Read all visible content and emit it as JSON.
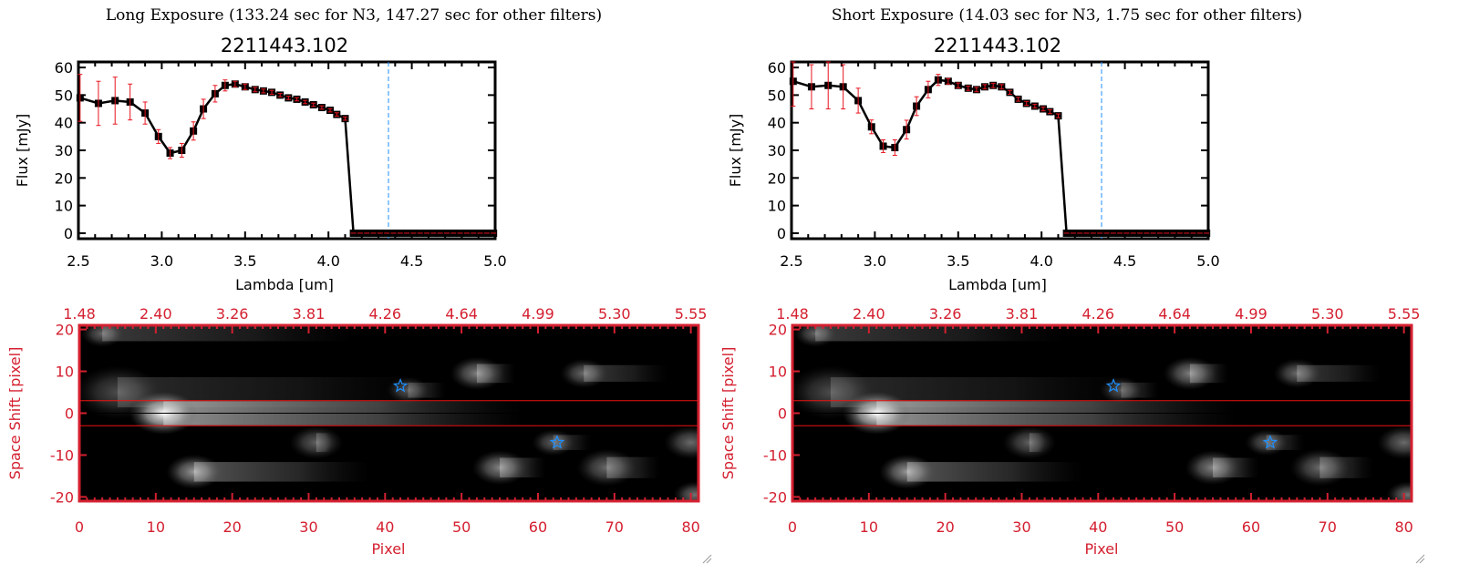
{
  "colors": {
    "line": "#000000",
    "error": "#e8141e",
    "marker": "#000000",
    "cutoff": "#1e90ff",
    "image_axis": "#d42030",
    "aperture": "#ee1111",
    "star": "#1e90ff"
  },
  "chart_data": [
    {
      "type": "line",
      "title": "Long Exposure (133.24 sec for N3, 147.27 sec for other filters)",
      "subtitle": "2211443.102",
      "xlabel": "Lambda [um]",
      "ylabel": "Flux [mJy]",
      "xlim": [
        2.5,
        5.0
      ],
      "ylim": [
        -2,
        62
      ],
      "xticks": [
        "2.5",
        "3.0",
        "3.5",
        "4.0",
        "4.5",
        "5.0"
      ],
      "yticks": [
        "0",
        "10",
        "20",
        "30",
        "40",
        "50",
        "60"
      ],
      "cutoff_lambda": 4.36,
      "x": [
        2.51,
        2.62,
        2.72,
        2.81,
        2.9,
        2.98,
        3.05,
        3.12,
        3.19,
        3.25,
        3.32,
        3.38,
        3.44,
        3.5,
        3.56,
        3.61,
        3.66,
        3.71,
        3.76,
        3.81,
        3.86,
        3.91,
        3.96,
        4.01,
        4.05,
        4.1,
        4.15,
        4.19,
        4.23,
        4.27,
        4.31,
        4.35,
        4.39,
        4.43,
        4.47,
        4.51,
        4.55,
        4.59,
        4.63,
        4.67,
        4.71,
        4.75,
        4.79,
        4.83,
        4.87,
        4.91,
        4.95,
        4.99
      ],
      "y": [
        49,
        47,
        48,
        47.5,
        43.5,
        35,
        29,
        30,
        37,
        45,
        50.5,
        53.5,
        54,
        53,
        52,
        51.5,
        51,
        50,
        49,
        48.5,
        47.5,
        46.5,
        45.5,
        44.5,
        43,
        41.5,
        0,
        0,
        0,
        0,
        0,
        0,
        0,
        0,
        0,
        0,
        0,
        0,
        0,
        0,
        0,
        0,
        0,
        0,
        0,
        0,
        0,
        0
      ],
      "yerr": [
        8.5,
        8,
        8.5,
        6.5,
        4,
        2.5,
        2,
        2.5,
        3.3,
        3.5,
        3,
        2,
        1,
        1,
        0.8,
        0.7,
        0.7,
        0.6,
        0.6,
        0.6,
        0.6,
        0.6,
        0.6,
        0.6,
        0.6,
        0.6,
        0,
        0,
        0,
        0,
        0,
        0,
        0,
        0,
        0,
        0,
        0,
        0,
        0,
        0,
        0,
        0,
        0,
        0,
        0,
        0,
        0,
        0
      ],
      "image": {
        "xlabel": "Pixel",
        "ylabel": "Space Shift [pixel]",
        "xlim": [
          0,
          81
        ],
        "ylim": [
          -21,
          21
        ],
        "xticks": [
          "0",
          "10",
          "20",
          "30",
          "40",
          "50",
          "60",
          "70",
          "80"
        ],
        "yticks": [
          "-20",
          "-10",
          "0",
          "10",
          "20"
        ],
        "top_ticks": [
          "1.48",
          "2.40",
          "3.26",
          "3.81",
          "4.26",
          "4.64",
          "4.99",
          "5.30",
          "5.55"
        ],
        "aperture": [
          -3,
          3
        ],
        "stars": [
          [
            42,
            6.5
          ],
          [
            62.5,
            -7
          ]
        ],
        "sources": [
          {
            "x": 11,
            "y": 0,
            "b": 1.0,
            "tail": 58,
            "w": 3.2
          },
          {
            "x": 3,
            "y": 19,
            "b": 0.4,
            "tail": 36,
            "w": 2
          },
          {
            "x": 52,
            "y": 9.5,
            "b": 0.5,
            "tail": 57,
            "w": 2.5
          },
          {
            "x": 66,
            "y": 9.5,
            "b": 0.42,
            "tail": 77,
            "w": 2.2
          },
          {
            "x": 43,
            "y": 5.5,
            "b": 0.35,
            "tail": 48,
            "w": 2
          },
          {
            "x": 31,
            "y": -7,
            "b": 0.38,
            "tail": 33,
            "w": 2.5
          },
          {
            "x": 62,
            "y": -7,
            "b": 0.38,
            "tail": 67,
            "w": 2
          },
          {
            "x": 80,
            "y": -7,
            "b": 0.42,
            "tail": 81,
            "w": 2.5
          },
          {
            "x": 15,
            "y": -14,
            "b": 0.6,
            "tail": 38,
            "w": 2.6
          },
          {
            "x": 55,
            "y": -13,
            "b": 0.52,
            "tail": 61,
            "w": 2.6
          },
          {
            "x": 69,
            "y": -13,
            "b": 0.42,
            "tail": 76,
            "w": 2.8
          },
          {
            "x": 80.5,
            "y": -19.5,
            "b": 0.45,
            "tail": 81,
            "w": 2
          },
          {
            "x": 5,
            "y": 5,
            "b": 0.3,
            "tail": 45,
            "w": 4
          }
        ]
      }
    },
    {
      "type": "line",
      "title": "Short Exposure (14.03 sec for N3, 1.75 sec for other filters)",
      "subtitle": "2211443.102",
      "xlabel": "Lambda [um]",
      "ylabel": "Flux [mJy]",
      "xlim": [
        2.5,
        5.0
      ],
      "ylim": [
        -2,
        62
      ],
      "xticks": [
        "2.5",
        "3.0",
        "3.5",
        "4.0",
        "4.5",
        "5.0"
      ],
      "yticks": [
        "0",
        "10",
        "20",
        "30",
        "40",
        "50",
        "60"
      ],
      "cutoff_lambda": 4.36,
      "x": [
        2.51,
        2.62,
        2.72,
        2.81,
        2.9,
        2.98,
        3.05,
        3.12,
        3.19,
        3.25,
        3.32,
        3.38,
        3.44,
        3.5,
        3.56,
        3.61,
        3.66,
        3.71,
        3.76,
        3.81,
        3.86,
        3.91,
        3.96,
        4.01,
        4.05,
        4.1,
        4.15,
        4.19,
        4.23,
        4.27,
        4.31,
        4.35,
        4.39,
        4.43,
        4.47,
        4.51,
        4.55,
        4.59,
        4.63,
        4.67,
        4.71,
        4.75,
        4.79,
        4.83,
        4.87,
        4.91,
        4.95,
        4.99
      ],
      "y": [
        55,
        53,
        53.5,
        53,
        48,
        38.5,
        31.5,
        31,
        37.5,
        46,
        52,
        55.5,
        55,
        53.5,
        52.5,
        52,
        53,
        53.5,
        53,
        51,
        48.5,
        47,
        46,
        45,
        44,
        42.5,
        0,
        0,
        0,
        0,
        0,
        0,
        0,
        0,
        0,
        0,
        0,
        0,
        0,
        0,
        0,
        0,
        0,
        0,
        0,
        0,
        0,
        0
      ],
      "yerr": [
        9,
        8,
        8.5,
        8,
        4.5,
        2.5,
        2.3,
        2.8,
        3.4,
        3.4,
        3,
        2,
        1,
        0.9,
        0.8,
        0.8,
        0.8,
        0.8,
        0.8,
        0.7,
        0.7,
        0.7,
        0.7,
        0.7,
        0.7,
        0.7,
        0,
        0,
        0,
        0,
        0,
        0,
        0,
        0,
        0,
        0,
        0,
        0,
        0,
        0,
        0,
        0,
        0,
        0,
        0,
        0,
        0,
        0
      ],
      "image": {
        "xlabel": "Pixel",
        "ylabel": "Space Shift [pixel]",
        "xlim": [
          0,
          81
        ],
        "ylim": [
          -21,
          21
        ],
        "xticks": [
          "0",
          "10",
          "20",
          "30",
          "40",
          "50",
          "60",
          "70",
          "80"
        ],
        "yticks": [
          "-20",
          "-10",
          "0",
          "10",
          "20"
        ],
        "top_ticks": [
          "1.48",
          "2.40",
          "3.26",
          "3.81",
          "4.26",
          "4.64",
          "4.99",
          "5.30",
          "5.55"
        ],
        "aperture": [
          -3,
          3
        ],
        "stars": [
          [
            42,
            6.5
          ],
          [
            62.5,
            -7
          ]
        ],
        "sources": [
          {
            "x": 11,
            "y": 0,
            "b": 1.0,
            "tail": 58,
            "w": 3.2
          },
          {
            "x": 3,
            "y": 19,
            "b": 0.4,
            "tail": 36,
            "w": 2
          },
          {
            "x": 52,
            "y": 9.5,
            "b": 0.5,
            "tail": 57,
            "w": 2.5
          },
          {
            "x": 66,
            "y": 9.5,
            "b": 0.42,
            "tail": 77,
            "w": 2.2
          },
          {
            "x": 43,
            "y": 5.5,
            "b": 0.35,
            "tail": 48,
            "w": 2
          },
          {
            "x": 31,
            "y": -7,
            "b": 0.38,
            "tail": 33,
            "w": 2.5
          },
          {
            "x": 62,
            "y": -7,
            "b": 0.38,
            "tail": 67,
            "w": 2
          },
          {
            "x": 80,
            "y": -7,
            "b": 0.42,
            "tail": 81,
            "w": 2.5
          },
          {
            "x": 15,
            "y": -14,
            "b": 0.6,
            "tail": 38,
            "w": 2.6
          },
          {
            "x": 55,
            "y": -13,
            "b": 0.52,
            "tail": 61,
            "w": 2.6
          },
          {
            "x": 69,
            "y": -13,
            "b": 0.42,
            "tail": 76,
            "w": 2.8
          },
          {
            "x": 80.5,
            "y": -19.5,
            "b": 0.45,
            "tail": 81,
            "w": 2
          },
          {
            "x": 5,
            "y": 5,
            "b": 0.3,
            "tail": 45,
            "w": 4
          }
        ]
      }
    }
  ]
}
